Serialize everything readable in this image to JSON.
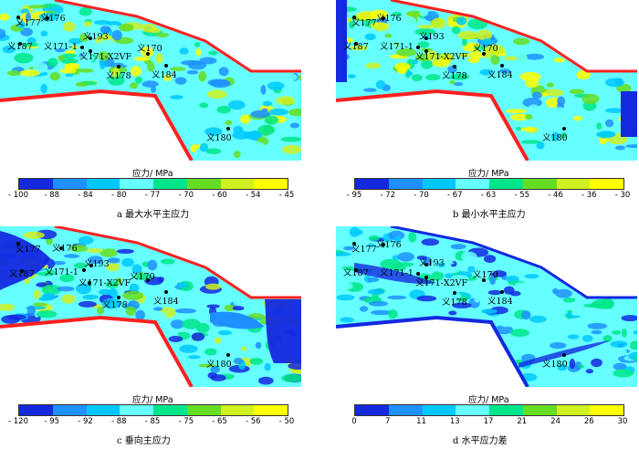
{
  "legend_title": "应力/ MPa",
  "panels": [
    {
      "caption": "a  最大水平主应力",
      "ticks": [
        "- 100",
        "- 88",
        "- 84",
        "- 80",
        "- 77",
        "- 70",
        "- 60",
        "- 54",
        "- 45"
      ],
      "colors": [
        "#1428e0",
        "#1e90ff",
        "#00c8ff",
        "#66ffff",
        "#00e68a",
        "#66dd22",
        "#d0f020",
        "#ffff00",
        "#ff2020"
      ],
      "wells": [
        "义177",
        "义176",
        "义187",
        "义171-1",
        "义193",
        "义171-X2VF",
        "义170",
        "义178",
        "义184",
        "义180"
      ]
    },
    {
      "caption": "b  最小水平主应力",
      "ticks": [
        "- 95",
        "- 72",
        "- 70",
        "- 67",
        "- 63",
        "- 55",
        "- 46",
        "- 36",
        "- 30"
      ],
      "colors": [
        "#1428e0",
        "#1e90ff",
        "#00c8ff",
        "#66ffff",
        "#00e68a",
        "#66dd22",
        "#d0f020",
        "#ffff00",
        "#ff2020"
      ],
      "wells": [
        "义177",
        "义176",
        "义187",
        "义171-1",
        "义193",
        "义171-X2VF",
        "义170",
        "义178",
        "义184",
        "义180"
      ]
    },
    {
      "caption": "c  垂向主应力",
      "ticks": [
        "- 120",
        "- 95",
        "- 92",
        "- 88",
        "- 85",
        "- 75",
        "- 65",
        "- 56",
        "- 50"
      ],
      "colors": [
        "#1428e0",
        "#1e90ff",
        "#00c8ff",
        "#66ffff",
        "#00e68a",
        "#66dd22",
        "#d0f020",
        "#ffff00",
        "#ff2020"
      ],
      "wells": [
        "义177",
        "义176",
        "义187",
        "义171-1",
        "义193",
        "义171-X2VF",
        "义170",
        "义178",
        "义184",
        "义180"
      ]
    },
    {
      "caption": "d  水平应力差",
      "ticks": [
        "0",
        "7",
        "11",
        "13",
        "17",
        "21",
        "24",
        "26",
        "30"
      ],
      "colors": [
        "#1428e0",
        "#1e90ff",
        "#00c8ff",
        "#66ffff",
        "#00e68a",
        "#66dd22",
        "#d0f020",
        "#ffff00",
        "#ff2020"
      ],
      "wells": [
        "义177",
        "义176",
        "义187",
        "义171-1",
        "义193",
        "义171-X2VF",
        "义170",
        "义178",
        "义184",
        "义180"
      ]
    }
  ]
}
